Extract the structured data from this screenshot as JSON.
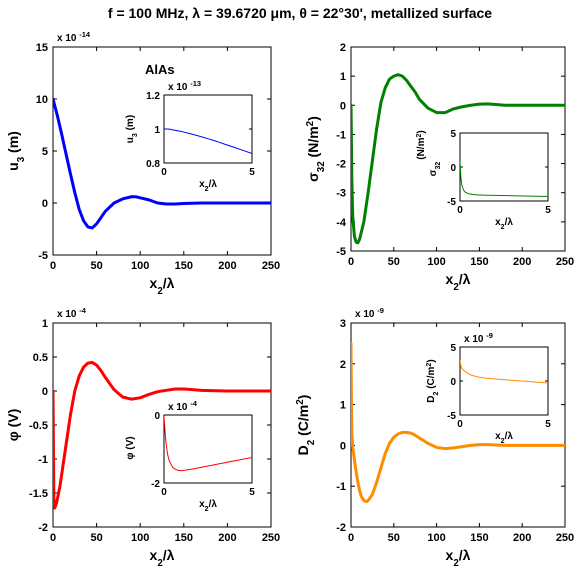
{
  "figure": {
    "title": "f = 100 MHz,    λ = 39.6720 μm,    θ = 22°30',    metallized surface"
  },
  "chart_data": [
    {
      "type": "line",
      "material_label": "AlAs",
      "xlabel_base": "x",
      "xlabel_sub": "2",
      "xlabel_tail": "/λ",
      "ylabel_base": "u",
      "ylabel_sub": "3",
      "ylabel_tail": " (m)",
      "exponent_label": "x 10",
      "exponent_power": "-14",
      "xlim": [
        0,
        250
      ],
      "ylim": [
        -5,
        15
      ],
      "xticks": [
        0,
        50,
        100,
        150,
        200,
        250
      ],
      "yticks": [
        -5,
        0,
        5,
        10,
        15
      ],
      "color": "#0000ff",
      "x": [
        0,
        5,
        10,
        15,
        20,
        25,
        30,
        35,
        40,
        45,
        50,
        55,
        60,
        70,
        80,
        90,
        95,
        100,
        110,
        120,
        130,
        140,
        150,
        170,
        200,
        230,
        250
      ],
      "y": [
        10.0,
        8.4,
        6.6,
        4.7,
        2.8,
        1.0,
        -0.6,
        -1.7,
        -2.3,
        -2.4,
        -2.0,
        -1.4,
        -0.8,
        0.0,
        0.4,
        0.6,
        0.6,
        0.5,
        0.3,
        0.0,
        -0.1,
        -0.1,
        -0.05,
        0.0,
        0.0,
        0.0,
        0.0
      ],
      "inset": {
        "xlabel_base": "x",
        "xlabel_sub": "2",
        "xlabel_tail": "/λ",
        "ylabel_base": "u",
        "ylabel_sub": "3",
        "ylabel_tail": " (m)",
        "exponent_label": "x 10",
        "exponent_power": "-13",
        "xlim": [
          0,
          5
        ],
        "ylim": [
          0.8,
          1.2
        ],
        "xticks": [
          0,
          5
        ],
        "yticks": [
          0.8,
          1,
          1.2
        ],
        "x": [
          0,
          0.25,
          0.5,
          1,
          1.5,
          2,
          2.5,
          3,
          3.5,
          4,
          4.5,
          5
        ],
        "y": [
          1.0,
          1.0,
          0.995,
          0.985,
          0.972,
          0.958,
          0.943,
          0.927,
          0.909,
          0.892,
          0.874,
          0.856
        ]
      }
    },
    {
      "type": "line",
      "xlabel_base": "x",
      "xlabel_sub": "2",
      "xlabel_tail": "/λ",
      "ylabel_base": "σ",
      "ylabel_sub": "32",
      "ylabel_tail": " (N/m",
      "ylabel_sup": "2",
      "ylabel_end": ")",
      "xlim": [
        0,
        250
      ],
      "ylim": [
        -5,
        2
      ],
      "xticks": [
        0,
        50,
        100,
        150,
        200,
        250
      ],
      "yticks": [
        -5,
        -4,
        -3,
        -2,
        -1,
        0,
        1,
        2
      ],
      "color": "#008000",
      "x": [
        0,
        1,
        2,
        4,
        6,
        8,
        10,
        15,
        20,
        25,
        30,
        35,
        40,
        45,
        50,
        55,
        60,
        65,
        70,
        75,
        80,
        90,
        100,
        110,
        120,
        130,
        140,
        150,
        160,
        180,
        200,
        250
      ],
      "y": [
        0.0,
        -2.6,
        -3.8,
        -4.5,
        -4.7,
        -4.72,
        -4.6,
        -4.0,
        -3.0,
        -1.9,
        -0.8,
        0.1,
        0.6,
        0.9,
        1.0,
        1.05,
        1.0,
        0.85,
        0.65,
        0.45,
        0.2,
        -0.1,
        -0.25,
        -0.25,
        -0.12,
        -0.05,
        0.0,
        0.04,
        0.05,
        0.0,
        0.0,
        0.0
      ],
      "inset": {
        "xlabel_base": "x",
        "xlabel_sub": "2",
        "xlabel_tail": "/λ",
        "ylabel_base": "σ",
        "ylabel_sub": "32",
        "ylabel_unit": "(N/m",
        "ylabel_unit_sup": "2",
        "ylabel_unit_end": ")",
        "xlim": [
          0,
          5
        ],
        "ylim": [
          -5,
          5
        ],
        "xticks": [
          0,
          5
        ],
        "yticks": [
          -5,
          0,
          5
        ],
        "x": [
          0,
          0.05,
          0.1,
          0.2,
          0.3,
          0.5,
          0.75,
          1,
          1.5,
          2,
          3,
          4,
          5
        ],
        "y": [
          0.8,
          -1.5,
          -2.6,
          -3.4,
          -3.7,
          -3.95,
          -4.05,
          -4.1,
          -4.15,
          -4.18,
          -4.23,
          -4.28,
          -4.33
        ]
      }
    },
    {
      "type": "line",
      "xlabel_base": "x",
      "xlabel_sub": "2",
      "xlabel_tail": "/λ",
      "ylabel_base": "φ",
      "ylabel_tail": " (V)",
      "exponent_label": "x 10",
      "exponent_power": "-4",
      "xlim": [
        0,
        250
      ],
      "ylim": [
        -2,
        1
      ],
      "xticks": [
        0,
        50,
        100,
        150,
        200,
        250
      ],
      "yticks": [
        -2,
        -1.5,
        -1,
        -0.5,
        0,
        0.5,
        1
      ],
      "color": "#ff0000",
      "x": [
        0,
        1,
        2,
        4,
        8,
        12,
        16,
        20,
        25,
        30,
        35,
        40,
        45,
        50,
        55,
        60,
        70,
        80,
        90,
        100,
        110,
        120,
        130,
        140,
        150,
        160,
        170,
        200,
        250
      ],
      "y": [
        0.0,
        -1.6,
        -1.72,
        -1.65,
        -1.4,
        -1.05,
        -0.7,
        -0.35,
        0.0,
        0.22,
        0.35,
        0.41,
        0.42,
        0.38,
        0.3,
        0.2,
        0.02,
        -0.09,
        -0.12,
        -0.1,
        -0.05,
        -0.01,
        0.01,
        0.03,
        0.03,
        0.02,
        0.01,
        0.0,
        0.0
      ],
      "inset": {
        "xlabel_base": "x",
        "xlabel_sub": "2",
        "xlabel_tail": "/λ",
        "ylabel_base": "φ",
        "ylabel_tail": " (V)",
        "exponent_label": "x 10",
        "exponent_power": "-4",
        "xlim": [
          0,
          5
        ],
        "ylim": [
          -2,
          0
        ],
        "xticks": [
          0,
          5
        ],
        "yticks": [
          -2,
          0
        ],
        "x": [
          0,
          0.1,
          0.2,
          0.3,
          0.5,
          0.75,
          1,
          1.5,
          2,
          3,
          4,
          5
        ],
        "y": [
          -0.05,
          -0.75,
          -1.15,
          -1.35,
          -1.55,
          -1.62,
          -1.64,
          -1.6,
          -1.55,
          -1.45,
          -1.35,
          -1.25
        ]
      }
    },
    {
      "type": "line",
      "xlabel_base": "x",
      "xlabel_sub": "2",
      "xlabel_tail": "/λ",
      "ylabel_base": "D",
      "ylabel_sub": "2",
      "ylabel_tail": " (C/m",
      "ylabel_sup": "2",
      "ylabel_end": ")",
      "exponent_label": "x 10",
      "exponent_power": "-9",
      "xlim": [
        0,
        250
      ],
      "ylim": [
        -2,
        3
      ],
      "xticks": [
        0,
        50,
        100,
        150,
        200,
        250
      ],
      "yticks": [
        -2,
        -1,
        0,
        1,
        2,
        3
      ],
      "color": "#ff8c00",
      "x": [
        0,
        0.5,
        1,
        2,
        4,
        6,
        8,
        10,
        12,
        15,
        18,
        20,
        25,
        30,
        35,
        40,
        45,
        50,
        55,
        60,
        65,
        70,
        75,
        80,
        90,
        100,
        110,
        120,
        130,
        140,
        150,
        160,
        180,
        200,
        250
      ],
      "y": [
        2.5,
        1.0,
        0.3,
        -0.05,
        -0.35,
        -0.65,
        -0.9,
        -1.1,
        -1.25,
        -1.35,
        -1.38,
        -1.35,
        -1.2,
        -0.9,
        -0.55,
        -0.2,
        0.05,
        0.2,
        0.28,
        0.32,
        0.32,
        0.3,
        0.25,
        0.18,
        0.05,
        -0.05,
        -0.08,
        -0.06,
        -0.03,
        0.0,
        0.02,
        0.02,
        0.0,
        0.0,
        0.0
      ],
      "inset": {
        "xlabel_base": "x",
        "xlabel_sub": "2",
        "xlabel_tail": "/λ",
        "ylabel_base": "D",
        "ylabel_sub": "2",
        "ylabel_tail": " (C/m",
        "ylabel_sup": "2",
        "ylabel_end": ")",
        "exponent_label": "x 10",
        "exponent_power": "-9",
        "xlim": [
          0,
          5
        ],
        "ylim": [
          -5,
          5
        ],
        "xticks": [
          0,
          5
        ],
        "yticks": [
          -5,
          0,
          5
        ],
        "x": [
          0,
          0.05,
          0.1,
          0.2,
          0.4,
          0.6,
          1,
          1.5,
          2,
          3,
          4,
          5
        ],
        "y": [
          3.0,
          2.2,
          1.9,
          1.6,
          1.2,
          0.9,
          0.6,
          0.4,
          0.3,
          0.1,
          -0.1,
          -0.3
        ]
      }
    }
  ]
}
